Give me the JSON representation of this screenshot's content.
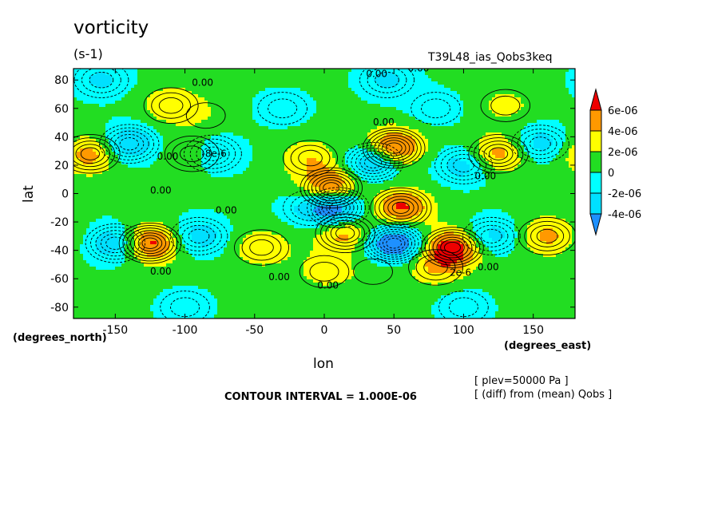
{
  "header": {
    "title": "vorticity",
    "units": "(s-1)",
    "run_id": "T39L48_ias_Qobs3keq"
  },
  "axes": {
    "xlabel": "lon",
    "ylabel": "lat",
    "x_units_note": "(degrees_east)",
    "y_units_note": "(degrees_north)"
  },
  "footer": {
    "contour_interval": "CONTOUR INTERVAL = 1.000E-06",
    "level": "[ plev=50000 Pa ]",
    "diff_note": "[ (diff) from (mean) Qobs ]"
  },
  "colors": {
    "lt_-4e-6": "#1e90ff",
    "-4e-6_-2e-6": "#00e0ff",
    "-2e-6_0": "#00ffff",
    "0_2e-6": "#22dd22",
    "2e-6_4e-6": "#ffff00",
    "4e-6_6e-6": "#ff9900",
    "gt_6e-6": "#ee0000"
  },
  "chart_data": {
    "type": "heatmap",
    "title": "vorticity",
    "subtitle": "(s-1)",
    "xlabel": "lon",
    "ylabel": "lat",
    "xlim": [
      -180,
      180
    ],
    "ylim": [
      -88,
      88
    ],
    "x_ticks": [
      -150,
      -100,
      -50,
      0,
      50,
      100,
      150
    ],
    "x_tick_labels": [
      "-150",
      "-100",
      "-50",
      "0",
      "50",
      "100",
      "150"
    ],
    "y_ticks": [
      80,
      60,
      40,
      20,
      0,
      -20,
      -40,
      -60,
      -80
    ],
    "y_tick_labels": [
      "80",
      "60",
      "40",
      "20",
      "0",
      "-20",
      "-40",
      "-60",
      "-80"
    ],
    "colorbar": {
      "levels": [
        -4e-06,
        -2e-06,
        0,
        2e-06,
        4e-06,
        6e-06
      ],
      "labels": [
        "6e-06",
        "4e-06",
        "2e-06",
        "0",
        "-2e-06",
        "-4e-06"
      ],
      "colors": [
        "#1e90ff",
        "#00e0ff",
        "#00ffff",
        "#22dd22",
        "#ffff00",
        "#ff9900",
        "#ee0000"
      ]
    },
    "contour_interval": 1e-06,
    "contour_labels": [
      "0.00",
      "-8e-6",
      "2e-6"
    ],
    "features": [
      {
        "lon": 50,
        "lat": 32,
        "value": 7e-06
      },
      {
        "lon": 5,
        "lat": 4,
        "value": 7e-06
      },
      {
        "lon": -125,
        "lat": -35,
        "value": 7e-06
      },
      {
        "lon": 92,
        "lat": -38,
        "value": 7e-06
      },
      {
        "lon": 55,
        "lat": -10,
        "value": 6e-06
      },
      {
        "lon": -168,
        "lat": 28,
        "value": 5e-06
      },
      {
        "lon": 125,
        "lat": 28,
        "value": 5e-06
      },
      {
        "lon": 15,
        "lat": -28,
        "value": 5e-06
      },
      {
        "lon": 160,
        "lat": -30,
        "value": 4e-06
      },
      {
        "lon": -95,
        "lat": 28,
        "value": 3e-06
      },
      {
        "lon": -110,
        "lat": 62,
        "value": 3e-06
      },
      {
        "lon": -10,
        "lat": 25,
        "value": 3e-06
      },
      {
        "lon": -45,
        "lat": -38,
        "value": 3e-06
      },
      {
        "lon": 80,
        "lat": -52,
        "value": 3e-06
      },
      {
        "lon": 0,
        "lat": -55,
        "value": 2e-06
      },
      {
        "lon": 130,
        "lat": 62,
        "value": 2e-06
      },
      {
        "lon": -85,
        "lat": 55,
        "value": 1e-06
      },
      {
        "lon": 35,
        "lat": -55,
        "value": 1e-06
      },
      {
        "lon": 50,
        "lat": -35,
        "value": -8e-06
      },
      {
        "lon": 10,
        "lat": -10,
        "value": -7e-06
      },
      {
        "lon": 35,
        "lat": 22,
        "value": -6e-06
      },
      {
        "lon": -150,
        "lat": -35,
        "value": -5e-06
      },
      {
        "lon": -140,
        "lat": 35,
        "value": -5e-06
      },
      {
        "lon": -80,
        "lat": 28,
        "value": -4e-06
      },
      {
        "lon": -90,
        "lat": -30,
        "value": -4e-06
      },
      {
        "lon": 120,
        "lat": -30,
        "value": -4e-06
      },
      {
        "lon": 155,
        "lat": 35,
        "value": -4e-06
      },
      {
        "lon": 100,
        "lat": 20,
        "value": -4e-06
      },
      {
        "lon": -10,
        "lat": -10,
        "value": -3e-06
      },
      {
        "lon": -160,
        "lat": 80,
        "value": -3e-06
      },
      {
        "lon": 45,
        "lat": 80,
        "value": -3e-06
      },
      {
        "lon": -100,
        "lat": -80,
        "value": -2e-06
      },
      {
        "lon": 100,
        "lat": -80,
        "value": -2e-06
      },
      {
        "lon": -30,
        "lat": 60,
        "value": -2e-06
      },
      {
        "lon": 80,
        "lat": 60,
        "value": -2e-06
      }
    ]
  }
}
